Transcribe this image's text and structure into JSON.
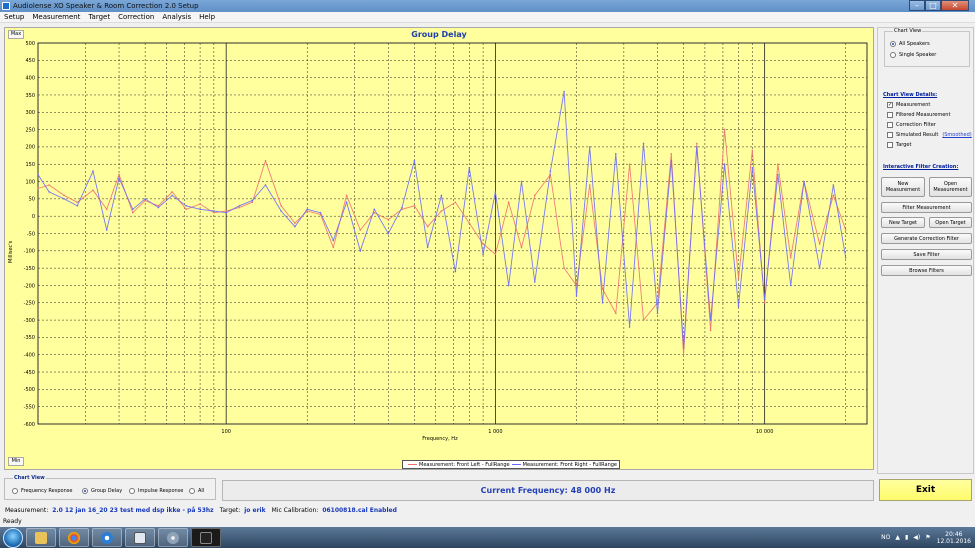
{
  "window": {
    "title": "Audiolense XO Speaker & Room Correction 2.0 Setup"
  },
  "menu": [
    "Setup",
    "Measurement",
    "Target",
    "Correction",
    "Analysis",
    "Help"
  ],
  "chart": {
    "max_label": "Max",
    "min_label": "Min"
  },
  "chart_data": {
    "type": "line",
    "title": "Group Delay",
    "xlabel": "Frequency, Hz",
    "ylabel": "Millisec's",
    "x_scale": "log",
    "xlim": [
      20,
      24000
    ],
    "ylim": [
      -600,
      500
    ],
    "x_tick_labels": [
      {
        "value": 100,
        "label": "100"
      },
      {
        "value": 1000,
        "label": "1 000"
      },
      {
        "value": 10000,
        "label": "10 000"
      }
    ],
    "y_ticks": [
      500,
      450,
      400,
      350,
      300,
      250,
      200,
      150,
      100,
      50,
      0,
      -50,
      -100,
      -150,
      -200,
      -250,
      -300,
      -350,
      -400,
      -450,
      -500,
      -550,
      -600
    ],
    "grid": true,
    "legend_placement": "bottom-center",
    "series": [
      {
        "name": "Measurement: Front Left - FullRange",
        "color": "#f07070",
        "x": [
          20,
          22,
          25,
          28,
          32,
          36,
          40,
          45,
          50,
          56,
          63,
          71,
          80,
          90,
          100,
          112,
          125,
          140,
          160,
          180,
          200,
          224,
          250,
          280,
          315,
          355,
          400,
          450,
          500,
          560,
          630,
          710,
          800,
          900,
          1000,
          1120,
          1250,
          1400,
          1600,
          1800,
          2000,
          2240,
          2500,
          2800,
          3150,
          3550,
          4000,
          4500,
          5000,
          5600,
          6300,
          7100,
          8000,
          9000,
          10000,
          11200,
          12500,
          14000,
          16000,
          18000,
          20000
        ],
        "y": [
          80,
          90,
          60,
          40,
          75,
          20,
          120,
          10,
          45,
          30,
          70,
          20,
          35,
          10,
          15,
          25,
          40,
          160,
          30,
          -20,
          15,
          5,
          -90,
          60,
          -40,
          10,
          -10,
          20,
          30,
          -30,
          15,
          40,
          -20,
          -80,
          -110,
          40,
          -90,
          60,
          120,
          -150,
          -200,
          90,
          -210,
          -280,
          150,
          -300,
          -250,
          180,
          -400,
          210,
          -330,
          250,
          -180,
          190,
          -250,
          150,
          -120,
          100,
          -80,
          60,
          -40
        ]
      },
      {
        "name": "Measurement: Front Right - FullRange",
        "color": "#6a6aff",
        "x": [
          20,
          22,
          25,
          28,
          32,
          36,
          40,
          45,
          50,
          56,
          63,
          71,
          80,
          90,
          100,
          112,
          125,
          140,
          160,
          180,
          200,
          224,
          250,
          280,
          315,
          355,
          400,
          450,
          500,
          560,
          630,
          710,
          800,
          900,
          1000,
          1120,
          1250,
          1400,
          1600,
          1800,
          2000,
          2240,
          2500,
          2800,
          3150,
          3550,
          4000,
          4500,
          5000,
          5600,
          6300,
          7100,
          8000,
          9000,
          10000,
          11200,
          12500,
          14000,
          16000,
          18000,
          20000
        ],
        "y": [
          120,
          70,
          50,
          30,
          130,
          -40,
          110,
          20,
          50,
          25,
          60,
          30,
          20,
          15,
          10,
          30,
          45,
          90,
          15,
          -30,
          20,
          10,
          -70,
          40,
          -100,
          20,
          -50,
          25,
          160,
          -90,
          60,
          -160,
          140,
          -110,
          70,
          -200,
          100,
          -190,
          130,
          360,
          -230,
          200,
          -250,
          180,
          -320,
          210,
          -280,
          160,
          -380,
          200,
          -300,
          150,
          -260,
          140,
          -240,
          120,
          -200,
          100,
          -150,
          90,
          -120
        ]
      }
    ]
  },
  "side_panel": {
    "chart_view_title": "Chart View",
    "radio_all": "All Speakers",
    "radio_single": "Single Speaker",
    "details_title": "Chart View Details:",
    "chk_measurement": "Measurement",
    "chk_filtered": "Filtered Measurement",
    "chk_correction": "Correction Filter",
    "chk_simulated": "Simulated Result",
    "smoothed_link": "(Smoothed)",
    "chk_target": "Target",
    "interactive_title": "Interactive Filter Creation:",
    "btn_new_measurement": "New Measurement",
    "btn_open_measurement": "Open Measurement",
    "btn_filter_measurement": "Filter Measurement",
    "btn_new_target": "New Target",
    "btn_open_target": "Open Target",
    "btn_generate": "Generate Correction Filter",
    "btn_save_filter": "Save Filter",
    "btn_browse": "Browse Filters"
  },
  "bottom": {
    "chart_view_title": "Chart View",
    "opt_freq": "Frequency Response",
    "opt_group": "Group Delay",
    "opt_impulse": "Impulse Response",
    "opt_all": "All",
    "current_frequency": "Current Frequency: 48 000 Hz",
    "exit_label": "Exit",
    "measurement_label": "Measurement:",
    "measurement_value": "2.0 12 jan 16_20 23 test med dsp ikke - på 53hz",
    "target_label": "Target:",
    "target_value": "jo erik",
    "mic_label": "Mic Calibration:",
    "mic_value": "06100818.cal Enabled",
    "status": "Ready"
  },
  "taskbar": {
    "lang": "NO",
    "time": "20:46",
    "date": "12.01.2016"
  }
}
